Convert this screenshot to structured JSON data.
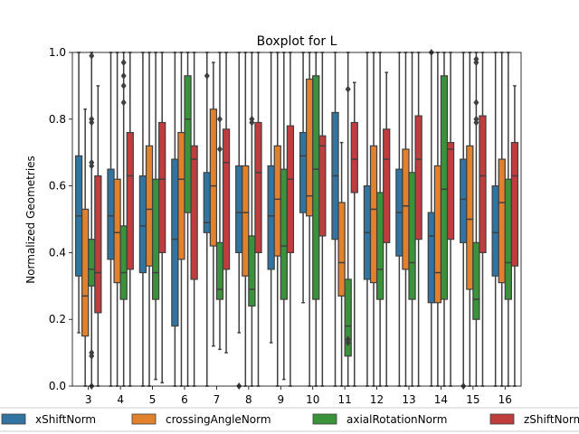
{
  "chart_data": {
    "type": "boxplot",
    "title": "Boxplot for L",
    "xlabel": "",
    "ylabel": "Normalized Geometries",
    "ylim": [
      0,
      1
    ],
    "yticks": [
      "0.0",
      "0.2",
      "0.4",
      "0.6",
      "0.8",
      "1.0"
    ],
    "categories": [
      "3",
      "4",
      "5",
      "6",
      "7",
      "8",
      "9",
      "10",
      "11",
      "12",
      "13",
      "14",
      "15",
      "16"
    ],
    "grid": false,
    "legend_position": "bottom",
    "series": [
      {
        "name": "xShiftNorm",
        "color": "#3274a1",
        "boxes": [
          {
            "q1": 0.33,
            "median": 0.51,
            "q3": 0.69,
            "wl": 0.16,
            "wh": 1.0,
            "fliers": []
          },
          {
            "q1": 0.38,
            "median": 0.51,
            "q3": 0.65,
            "wl": 0.0,
            "wh": 1.0,
            "fliers": []
          },
          {
            "q1": 0.34,
            "median": 0.48,
            "q3": 0.63,
            "wl": 0.0,
            "wh": 1.0,
            "fliers": []
          },
          {
            "q1": 0.18,
            "median": 0.44,
            "q3": 0.68,
            "wl": 0.0,
            "wh": 1.0,
            "fliers": []
          },
          {
            "q1": 0.46,
            "median": 0.49,
            "q3": 0.64,
            "wl": 0.0,
            "wh": 1.0,
            "fliers": [
              0.93
            ]
          },
          {
            "q1": 0.4,
            "median": 0.52,
            "q3": 0.66,
            "wl": 0.16,
            "wh": 1.0,
            "fliers": [
              0.0
            ]
          },
          {
            "q1": 0.35,
            "median": 0.51,
            "q3": 0.66,
            "wl": 0.13,
            "wh": 1.0,
            "fliers": []
          },
          {
            "q1": 0.52,
            "median": 0.69,
            "q3": 0.76,
            "wl": 0.25,
            "wh": 1.0,
            "fliers": []
          },
          {
            "q1": 0.44,
            "median": 0.63,
            "q3": 0.82,
            "wl": 0.0,
            "wh": 1.0,
            "fliers": []
          },
          {
            "q1": 0.32,
            "median": 0.46,
            "q3": 0.6,
            "wl": 0.0,
            "wh": 1.0,
            "fliers": []
          },
          {
            "q1": 0.39,
            "median": 0.52,
            "q3": 0.65,
            "wl": 0.0,
            "wh": 1.0,
            "fliers": []
          },
          {
            "q1": 0.25,
            "median": 0.45,
            "q3": 0.52,
            "wl": 0.0,
            "wh": 1.0,
            "fliers": [
              1.0
            ]
          },
          {
            "q1": 0.43,
            "median": 0.56,
            "q3": 0.68,
            "wl": 0.0,
            "wh": 1.0,
            "fliers": [
              0.0
            ]
          },
          {
            "q1": 0.33,
            "median": 0.46,
            "q3": 0.6,
            "wl": 0.0,
            "wh": 1.0,
            "fliers": []
          }
        ]
      },
      {
        "name": "crossingAngleNorm",
        "color": "#e1812c",
        "boxes": [
          {
            "q1": 0.15,
            "median": 0.27,
            "q3": 0.53,
            "wl": 0.0,
            "wh": 0.83,
            "fliers": []
          },
          {
            "q1": 0.31,
            "median": 0.46,
            "q3": 0.62,
            "wl": 0.0,
            "wh": 1.0,
            "fliers": []
          },
          {
            "q1": 0.36,
            "median": 0.53,
            "q3": 0.72,
            "wl": 0.0,
            "wh": 1.0,
            "fliers": []
          },
          {
            "q1": 0.38,
            "median": 0.62,
            "q3": 0.76,
            "wl": 0.0,
            "wh": 1.0,
            "fliers": []
          },
          {
            "q1": 0.42,
            "median": 0.6,
            "q3": 0.83,
            "wl": 0.12,
            "wh": 0.97,
            "fliers": []
          },
          {
            "q1": 0.33,
            "median": 0.52,
            "q3": 0.66,
            "wl": 0.0,
            "wh": 1.0,
            "fliers": []
          },
          {
            "q1": 0.39,
            "median": 0.56,
            "q3": 0.72,
            "wl": 0.0,
            "wh": 1.0,
            "fliers": []
          },
          {
            "q1": 0.51,
            "median": 0.57,
            "q3": 0.92,
            "wl": 0.0,
            "wh": 1.0,
            "fliers": []
          },
          {
            "q1": 0.27,
            "median": 0.37,
            "q3": 0.55,
            "wl": 0.0,
            "wh": 0.73,
            "fliers": []
          },
          {
            "q1": 0.31,
            "median": 0.53,
            "q3": 0.72,
            "wl": 0.0,
            "wh": 1.0,
            "fliers": []
          },
          {
            "q1": 0.35,
            "median": 0.54,
            "q3": 0.71,
            "wl": 0.0,
            "wh": 1.0,
            "fliers": []
          },
          {
            "q1": 0.25,
            "median": 0.34,
            "q3": 0.66,
            "wl": 0.0,
            "wh": 1.0,
            "fliers": []
          },
          {
            "q1": 0.29,
            "median": 0.5,
            "q3": 0.72,
            "wl": 0.0,
            "wh": 1.0,
            "fliers": []
          },
          {
            "q1": 0.31,
            "median": 0.55,
            "q3": 0.68,
            "wl": 0.0,
            "wh": 1.0,
            "fliers": []
          }
        ]
      },
      {
        "name": "axialRotationNorm",
        "color": "#3a923a",
        "boxes": [
          {
            "q1": 0.3,
            "median": 0.35,
            "q3": 0.44,
            "wl": 0.0,
            "wh": 1.0,
            "fliers": [
              0.99,
              0.8,
              0.79,
              0.67,
              0.66,
              0.1,
              0.09,
              0.0
            ]
          },
          {
            "q1": 0.26,
            "median": 0.34,
            "q3": 0.48,
            "wl": 0.0,
            "wh": 1.0,
            "fliers": [
              0.97,
              0.93,
              0.9,
              0.85
            ]
          },
          {
            "q1": 0.26,
            "median": 0.34,
            "q3": 0.62,
            "wl": 0.02,
            "wh": 1.0,
            "fliers": []
          },
          {
            "q1": 0.52,
            "median": 0.8,
            "q3": 0.93,
            "wl": 0.0,
            "wh": 1.0,
            "fliers": []
          },
          {
            "q1": 0.26,
            "median": 0.29,
            "q3": 0.43,
            "wl": 0.11,
            "wh": 1.0,
            "fliers": [
              0.8,
              0.71
            ]
          },
          {
            "q1": 0.24,
            "median": 0.29,
            "q3": 0.45,
            "wl": 0.0,
            "wh": 1.0,
            "fliers": [
              0.8,
              0.79
            ]
          },
          {
            "q1": 0.26,
            "median": 0.42,
            "q3": 0.65,
            "wl": 0.02,
            "wh": 1.0,
            "fliers": []
          },
          {
            "q1": 0.26,
            "median": 0.65,
            "q3": 0.93,
            "wl": 0.0,
            "wh": 1.0,
            "fliers": []
          },
          {
            "q1": 0.09,
            "median": 0.18,
            "q3": 0.32,
            "wl": 0.0,
            "wh": 1.0,
            "fliers": [
              0.89,
              0.14,
              0.13
            ]
          },
          {
            "q1": 0.26,
            "median": 0.35,
            "q3": 0.58,
            "wl": 0.0,
            "wh": 1.0,
            "fliers": []
          },
          {
            "q1": 0.26,
            "median": 0.37,
            "q3": 0.64,
            "wl": 0.0,
            "wh": 1.0,
            "fliers": []
          },
          {
            "q1": 0.26,
            "median": 0.59,
            "q3": 0.93,
            "wl": 0.0,
            "wh": 1.0,
            "fliers": []
          },
          {
            "q1": 0.2,
            "median": 0.26,
            "q3": 0.43,
            "wl": 0.0,
            "wh": 1.0,
            "fliers": [
              0.98,
              0.97,
              0.85,
              0.8,
              0.79
            ]
          },
          {
            "q1": 0.26,
            "median": 0.37,
            "q3": 0.62,
            "wl": 0.0,
            "wh": 1.0,
            "fliers": []
          }
        ]
      },
      {
        "name": "zShiftNorm",
        "color": "#c03d3e",
        "boxes": [
          {
            "q1": 0.22,
            "median": 0.34,
            "q3": 0.63,
            "wl": 0.0,
            "wh": 0.9,
            "fliers": []
          },
          {
            "q1": 0.35,
            "median": 0.63,
            "q3": 0.76,
            "wl": 0.0,
            "wh": 1.0,
            "fliers": []
          },
          {
            "q1": 0.4,
            "median": 0.62,
            "q3": 0.79,
            "wl": 0.01,
            "wh": 1.0,
            "fliers": []
          },
          {
            "q1": 0.32,
            "median": 0.68,
            "q3": 0.72,
            "wl": 0.0,
            "wh": 1.0,
            "fliers": []
          },
          {
            "q1": 0.35,
            "median": 0.67,
            "q3": 0.77,
            "wl": 0.1,
            "wh": 1.0,
            "fliers": []
          },
          {
            "q1": 0.4,
            "median": 0.64,
            "q3": 0.79,
            "wl": 0.0,
            "wh": 1.0,
            "fliers": []
          },
          {
            "q1": 0.4,
            "median": 0.62,
            "q3": 0.78,
            "wl": 0.0,
            "wh": 1.0,
            "fliers": []
          },
          {
            "q1": 0.45,
            "median": 0.72,
            "q3": 0.75,
            "wl": 0.0,
            "wh": 1.0,
            "fliers": []
          },
          {
            "q1": 0.58,
            "median": 0.68,
            "q3": 0.79,
            "wl": 0.0,
            "wh": 0.91,
            "fliers": []
          },
          {
            "q1": 0.43,
            "median": 0.68,
            "q3": 0.77,
            "wl": 0.0,
            "wh": 0.94,
            "fliers": []
          },
          {
            "q1": 0.44,
            "median": 0.68,
            "q3": 0.81,
            "wl": 0.0,
            "wh": 1.0,
            "fliers": []
          },
          {
            "q1": 0.44,
            "median": 0.71,
            "q3": 0.73,
            "wl": 0.0,
            "wh": 1.0,
            "fliers": []
          },
          {
            "q1": 0.4,
            "median": 0.63,
            "q3": 0.81,
            "wl": 0.0,
            "wh": 1.0,
            "fliers": []
          },
          {
            "q1": 0.36,
            "median": 0.63,
            "q3": 0.73,
            "wl": 0.0,
            "wh": 0.9,
            "fliers": []
          }
        ]
      }
    ]
  }
}
